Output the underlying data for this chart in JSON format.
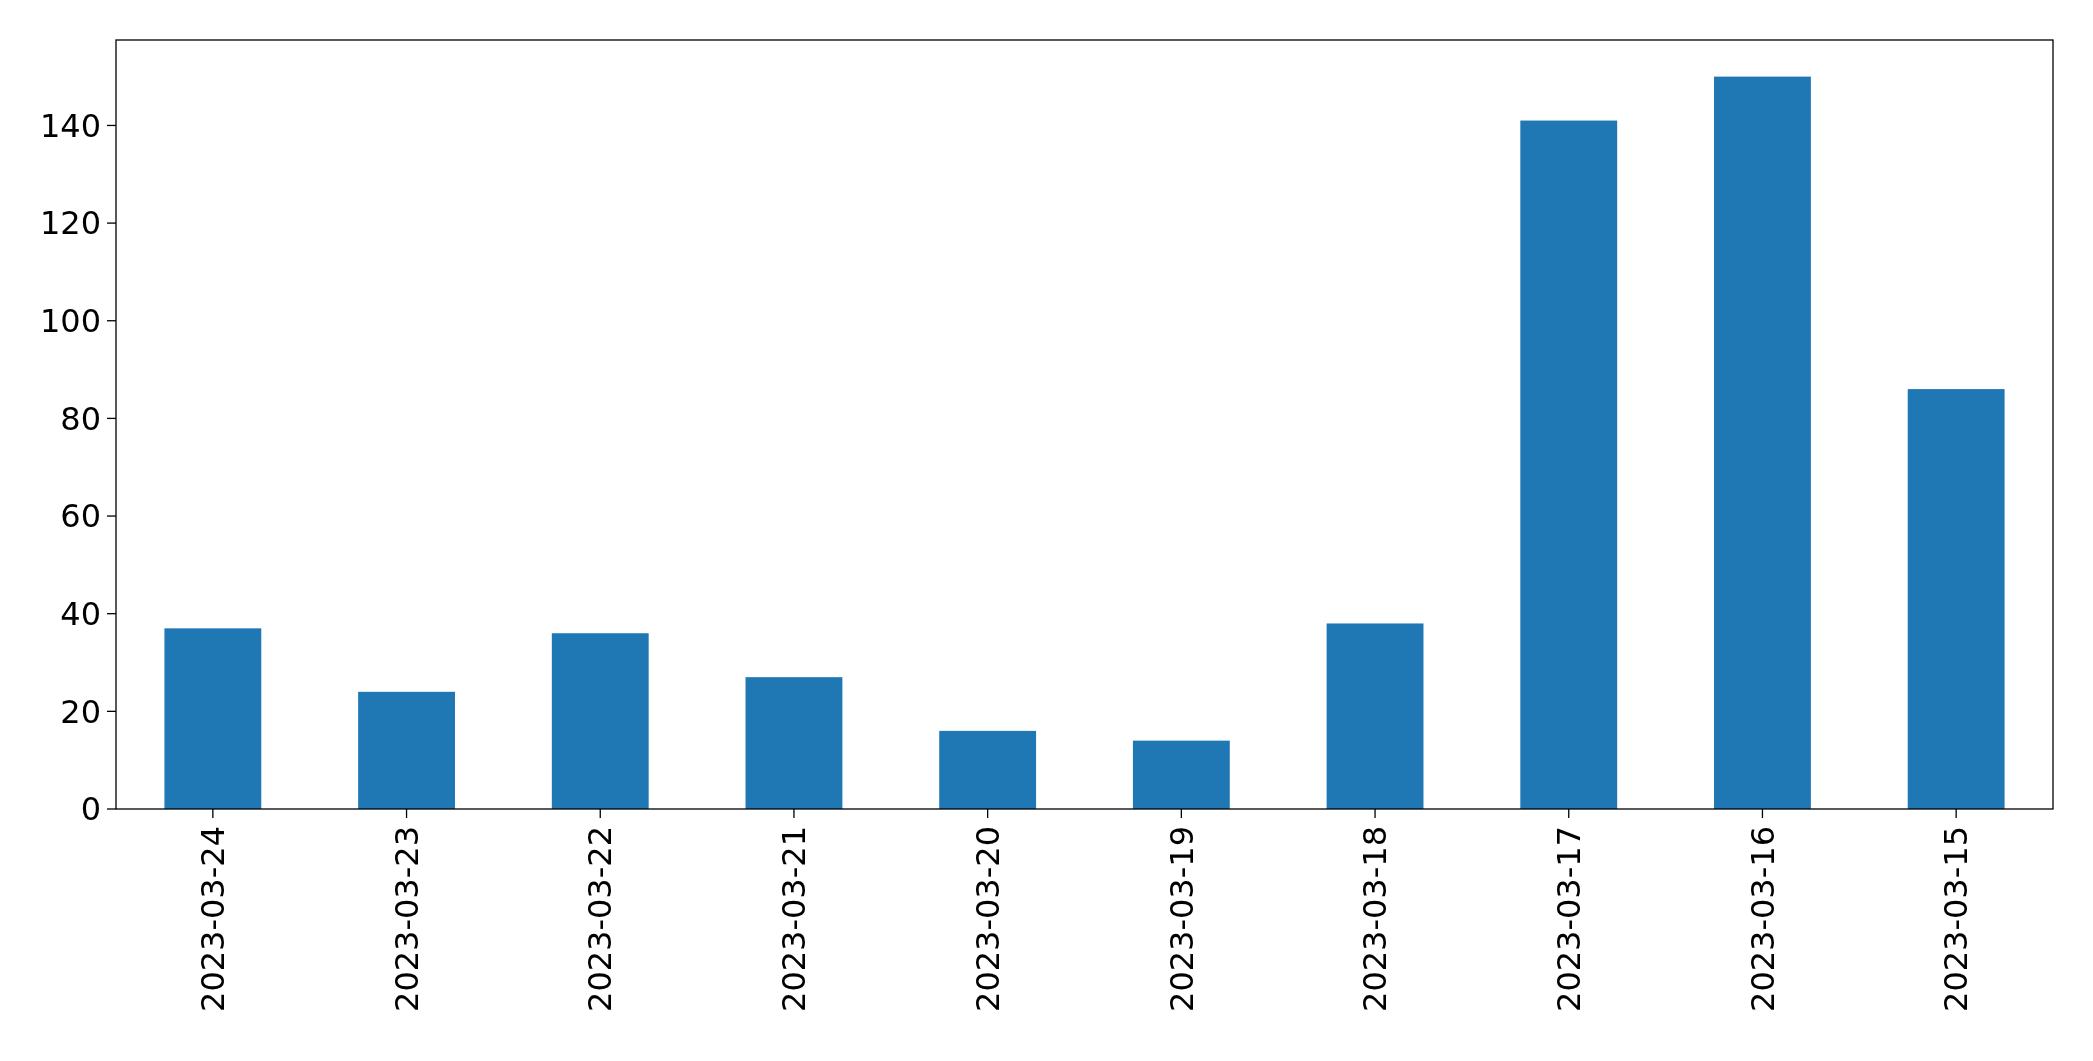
{
  "chart_data": {
    "type": "bar",
    "categories": [
      "2023-03-24",
      "2023-03-23",
      "2023-03-22",
      "2023-03-21",
      "2023-03-20",
      "2023-03-19",
      "2023-03-18",
      "2023-03-17",
      "2023-03-16",
      "2023-03-15"
    ],
    "values": [
      37,
      24,
      36,
      27,
      16,
      14,
      38,
      141,
      150,
      86
    ],
    "color": "#1f77b4",
    "ylim": [
      0,
      157.5
    ],
    "yticks": [
      0,
      20,
      40,
      60,
      80,
      100,
      120,
      140
    ],
    "grid": false
  }
}
